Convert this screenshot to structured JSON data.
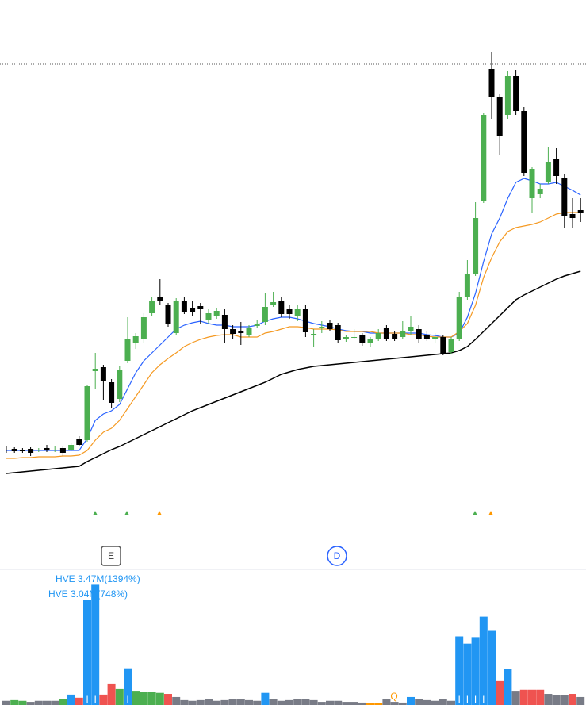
{
  "chart_data": {
    "type": "candlestick",
    "ylim": [
      0,
      580
    ],
    "up_color": "#4caf50",
    "down_color": "#000000",
    "open": [
      73,
      74,
      73,
      74,
      72,
      75,
      73,
      75,
      73,
      87,
      85,
      172,
      177,
      158,
      137,
      185,
      207,
      212,
      245,
      265,
      255,
      220,
      260,
      252,
      254,
      237,
      242,
      243,
      225,
      223,
      218,
      229,
      234,
      256,
      261,
      250,
      242,
      250,
      218,
      226,
      233,
      230,
      212,
      214,
      217,
      208,
      212,
      226,
      219,
      215,
      222,
      225,
      218,
      212,
      215,
      196,
      212,
      266,
      295,
      387,
      553,
      518,
      495,
      544,
      500,
      390,
      395,
      410,
      440,
      415,
      370,
      375
    ],
    "high": [
      78,
      76,
      75,
      76,
      75,
      79,
      77,
      78,
      81,
      90,
      155,
      195,
      180,
      162,
      178,
      240,
      220,
      245,
      265,
      288,
      258,
      264,
      266,
      260,
      258,
      250,
      252,
      250,
      230,
      234,
      230,
      237,
      270,
      272,
      265,
      255,
      255,
      255,
      225,
      235,
      237,
      233,
      218,
      225,
      220,
      215,
      225,
      230,
      222,
      235,
      242,
      230,
      222,
      220,
      218,
      215,
      272,
      312,
      385,
      498,
      575,
      522,
      550,
      552,
      505,
      430,
      408,
      455,
      454,
      420,
      390,
      390
    ],
    "low": [
      69,
      69,
      69,
      65,
      70,
      70,
      70,
      65,
      71,
      77,
      83,
      150,
      135,
      125,
      133,
      182,
      200,
      208,
      242,
      255,
      228,
      217,
      244,
      242,
      232,
      232,
      238,
      207,
      212,
      205,
      215,
      226,
      230,
      253,
      240,
      238,
      235,
      215,
      203,
      220,
      222,
      208,
      209,
      212,
      204,
      202,
      210,
      210,
      210,
      212,
      218,
      208,
      210,
      208,
      192,
      194,
      210,
      262,
      292,
      384,
      490,
      444,
      490,
      495,
      418,
      372,
      390,
      408,
      408,
      352,
      352,
      360
    ],
    "close": [
      72,
      71,
      71,
      69,
      73,
      72,
      73,
      69,
      79,
      79,
      153,
      175,
      160,
      132,
      174,
      212,
      216,
      240,
      260,
      260,
      232,
      260,
      247,
      247,
      250,
      245,
      248,
      225,
      219,
      220,
      227,
      231,
      253,
      259,
      244,
      244,
      250,
      221,
      219,
      228,
      225,
      211,
      215,
      215,
      207,
      213,
      220,
      213,
      212,
      223,
      228,
      213,
      212,
      215,
      194,
      212,
      266,
      295,
      365,
      495,
      518,
      468,
      544,
      500,
      422,
      427,
      402,
      436,
      418,
      368,
      365,
      372
    ],
    "series": [
      {
        "color": "#2962ff",
        "values": [
          72,
          72,
          72,
          72,
          72,
          72,
          72,
          72,
          72,
          72,
          87,
          110,
          118,
          122,
          130,
          150,
          170,
          185,
          195,
          205,
          215,
          225,
          230,
          233,
          235,
          232,
          230,
          230,
          228,
          228,
          228,
          230,
          235,
          238,
          240,
          240,
          238,
          235,
          232,
          230,
          228,
          225,
          223,
          222,
          222,
          220,
          220,
          220,
          220,
          220,
          220,
          220,
          218,
          217,
          215,
          215,
          220,
          240,
          270,
          310,
          345,
          365,
          390,
          410,
          415,
          412,
          408,
          408,
          410,
          405,
          400,
          394
        ]
      },
      {
        "color": "#f59a23",
        "values": [
          62,
          62,
          63,
          63,
          64,
          64,
          64,
          65,
          65,
          66,
          72,
          85,
          95,
          100,
          110,
          125,
          140,
          155,
          170,
          180,
          188,
          195,
          203,
          208,
          212,
          215,
          217,
          218,
          218,
          215,
          215,
          215,
          220,
          222,
          225,
          228,
          228,
          227,
          225,
          225,
          225,
          224,
          222,
          222,
          222,
          222,
          220,
          220,
          220,
          220,
          218,
          218,
          216,
          215,
          215,
          215,
          222,
          232,
          255,
          290,
          315,
          335,
          348,
          353,
          355,
          357,
          360,
          365,
          370,
          372,
          372,
          372
        ]
      },
      {
        "color": "#000000",
        "values": [
          43,
          44,
          45,
          46,
          47,
          48,
          49,
          50,
          51,
          52,
          58,
          63,
          68,
          73,
          77,
          82,
          87,
          92,
          97,
          102,
          107,
          112,
          117,
          122,
          126,
          130,
          134,
          138,
          142,
          146,
          150,
          154,
          158,
          163,
          168,
          171,
          174,
          176,
          178,
          179,
          180,
          181,
          182,
          183,
          184,
          185,
          186,
          187,
          188,
          189,
          190,
          191,
          192,
          193,
          194,
          195,
          198,
          203,
          212,
          222,
          232,
          242,
          252,
          262,
          268,
          273,
          278,
          283,
          288,
          292,
          295,
          298
        ]
      }
    ],
    "volume": {
      "ylim": [
        0,
        3.8
      ],
      "values": [
        0.12,
        0.14,
        0.12,
        0.09,
        0.12,
        0.12,
        0.12,
        0.18,
        0.3,
        0.21,
        3.04,
        3.47,
        0.3,
        0.62,
        0.46,
        1.06,
        0.41,
        0.37,
        0.37,
        0.35,
        0.32,
        0.23,
        0.14,
        0.12,
        0.14,
        0.16,
        0.12,
        0.14,
        0.16,
        0.16,
        0.14,
        0.12,
        0.35,
        0.16,
        0.12,
        0.14,
        0.16,
        0.18,
        0.14,
        0.09,
        0.12,
        0.12,
        0.09,
        0.09,
        0.07,
        0.05,
        0.05,
        0.16,
        0.09,
        0.07,
        0.23,
        0.18,
        0.14,
        0.12,
        0.16,
        0.12,
        1.98,
        1.77,
        1.96,
        2.55,
        2.14,
        0.69,
        1.04,
        0.41,
        0.44,
        0.44,
        0.44,
        0.32,
        0.28,
        0.28,
        0.32,
        0.23
      ],
      "colors": [
        "#787b86",
        "#4caf50",
        "#4caf50",
        "#787b86",
        "#787b86",
        "#787b86",
        "#787b86",
        "#4caf50",
        "#2196f3",
        "#ef5350",
        "#2196f3",
        "#2196f3",
        "#ef5350",
        "#ef5350",
        "#4caf50",
        "#2196f3",
        "#4caf50",
        "#4caf50",
        "#4caf50",
        "#4caf50",
        "#ef5350",
        "#787b86",
        "#787b86",
        "#787b86",
        "#787b86",
        "#787b86",
        "#787b86",
        "#787b86",
        "#787b86",
        "#787b86",
        "#787b86",
        "#787b86",
        "#2196f3",
        "#787b86",
        "#787b86",
        "#787b86",
        "#787b86",
        "#787b86",
        "#787b86",
        "#787b86",
        "#787b86",
        "#787b86",
        "#787b86",
        "#787b86",
        "#787b86",
        "#ff9800",
        "#ff9800",
        "#787b86",
        "#787b86",
        "#787b86",
        "#2196f3",
        "#787b86",
        "#787b86",
        "#787b86",
        "#787b86",
        "#787b86",
        "#2196f3",
        "#2196f3",
        "#2196f3",
        "#2196f3",
        "#2196f3",
        "#ef5350",
        "#2196f3",
        "#787b86",
        "#ef5350",
        "#ef5350",
        "#ef5350",
        "#787b86",
        "#787b86",
        "#787b86",
        "#ef5350",
        "#787b86"
      ],
      "flags": [
        null,
        null,
        null,
        null,
        null,
        null,
        null,
        null,
        null,
        null,
        "I",
        "I",
        null,
        null,
        null,
        "I",
        null,
        null,
        null,
        null,
        null,
        null,
        null,
        null,
        null,
        null,
        null,
        null,
        null,
        null,
        null,
        null,
        null,
        null,
        null,
        null,
        null,
        null,
        null,
        null,
        null,
        null,
        null,
        null,
        null,
        null,
        null,
        null,
        null,
        null,
        null,
        null,
        null,
        null,
        null,
        null,
        "I",
        "I",
        "I",
        "I",
        null,
        null,
        null,
        null,
        null,
        null,
        null,
        null,
        null,
        null,
        null,
        null
      ]
    },
    "annotations": [
      "HVE 3.47M(1394%)",
      "HVE 3.04M(748%)"
    ],
    "events": [
      "E",
      "D",
      "Q"
    ]
  }
}
